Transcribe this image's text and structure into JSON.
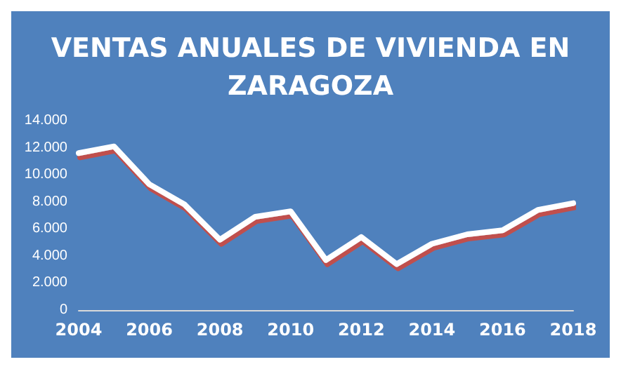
{
  "chart_data": {
    "type": "line",
    "title": "VENTAS ANUALES DE VIVIENDA EN\nZARAGOZA",
    "x": [
      2004,
      2005,
      2006,
      2007,
      2008,
      2009,
      2010,
      2011,
      2012,
      2013,
      2014,
      2015,
      2016,
      2017,
      2018
    ],
    "series": [
      {
        "color": "#ffffff",
        "values": [
          11600,
          12100,
          9300,
          7800,
          5200,
          6900,
          7300,
          3700,
          5400,
          3400,
          4900,
          5600,
          5900,
          7400,
          7900
        ]
      }
    ],
    "xlim": [
      2004,
      2018
    ],
    "xticks": [
      2004,
      2006,
      2008,
      2010,
      2012,
      2014,
      2016,
      2018
    ],
    "ylim": [
      0,
      14000
    ],
    "yticks": [
      0,
      {
        "value": 2000,
        "label": "2.000"
      },
      {
        "value": 4000,
        "label": "4.000"
      },
      {
        "value": 6000,
        "label": "6.000"
      },
      {
        "value": 8000,
        "label": "8.000"
      },
      {
        "value": 10000,
        "label": "10.000"
      },
      {
        "value": 12000,
        "label": "12.000"
      },
      {
        "value": 14000,
        "label": "14.000"
      }
    ],
    "grid": false,
    "marker": "none",
    "line_style": "solid"
  }
}
